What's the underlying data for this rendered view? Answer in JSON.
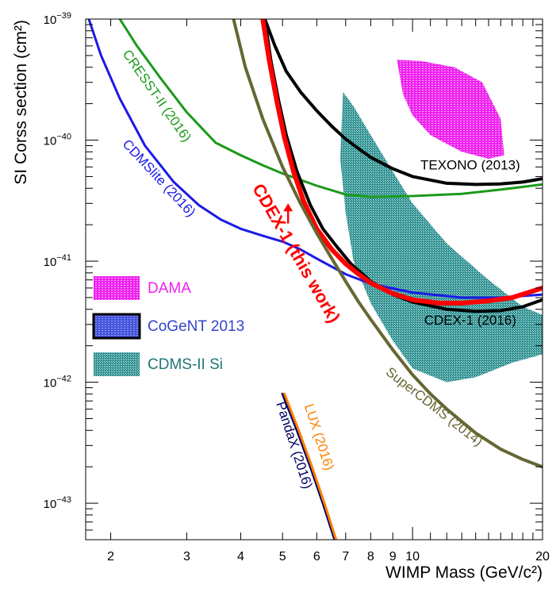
{
  "chart_data": {
    "type": "line",
    "title": "",
    "xlabel": "WIMP Mass (GeV/c²)",
    "ylabel": "SI Corss section (cm²)",
    "xscale": "log",
    "yscale": "log",
    "xlim": [
      1.75,
      20
    ],
    "ylim": [
      5e-44,
      1e-39
    ],
    "x_ticks": [
      {
        "value": 2,
        "label": "2"
      },
      {
        "value": 3,
        "label": "3"
      },
      {
        "value": 4,
        "label": "4"
      },
      {
        "value": 5,
        "label": "5"
      },
      {
        "value": 6,
        "label": "6"
      },
      {
        "value": 7,
        "label": "7"
      },
      {
        "value": 8,
        "label": "8"
      },
      {
        "value": 9,
        "label": "9"
      },
      {
        "value": 10,
        "label": "10"
      },
      {
        "value": 20,
        "label": "20"
      }
    ],
    "y_ticks": [
      {
        "value": 1e-39,
        "base": "10",
        "exp": "−39"
      },
      {
        "value": 1e-40,
        "base": "10",
        "exp": "−40"
      },
      {
        "value": 1e-41,
        "base": "10",
        "exp": "−41"
      },
      {
        "value": 1e-42,
        "base": "10",
        "exp": "−42"
      },
      {
        "value": 1e-43,
        "base": "10",
        "exp": "−43"
      }
    ],
    "series": [
      {
        "name": "CRESST-II (2016)",
        "color": "#1a9a1a",
        "width": 3,
        "x": [
          2.1,
          2.3,
          2.6,
          3.0,
          3.5,
          4.0,
          4.5,
          5.0,
          6.0,
          7.0,
          8.0,
          10.0,
          13.0,
          16.0,
          20.0
        ],
        "y": [
          1e-39,
          6e-40,
          3.3e-40,
          1.7e-40,
          9.5e-41,
          7.5e-41,
          6.2e-41,
          5.3e-41,
          4.2e-41,
          3.55e-41,
          3.4e-41,
          3.45e-41,
          3.6e-41,
          3.9e-41,
          4.3e-41
        ]
      },
      {
        "name": "CDMSlite (2016)",
        "color": "#1a1ae6",
        "width": 3,
        "x": [
          1.78,
          1.9,
          2.1,
          2.4,
          2.8,
          3.2,
          3.6,
          4.0,
          4.5,
          5.0,
          5.5,
          6.0,
          7.0,
          8.0,
          10.0,
          13.0,
          16.0,
          20.0
        ],
        "y": [
          1e-39,
          5e-40,
          2.2e-40,
          9e-41,
          4.5e-41,
          2.9e-41,
          2.2e-41,
          1.85e-41,
          1.62e-41,
          1.45e-41,
          1.25e-41,
          1.05e-41,
          7.8e-42,
          6.5e-42,
          5.5e-42,
          5e-42,
          5e-42,
          5.3e-42
        ]
      },
      {
        "name": "TEXONO (2013)",
        "color": "#000000",
        "width": 4,
        "x": [
          4.55,
          4.8,
          5.1,
          5.5,
          6.0,
          6.5,
          7.0,
          7.5,
          8.0,
          9.0,
          10.0,
          12.0,
          14.0,
          16.0,
          18.0,
          20.0
        ],
        "y": [
          1e-39,
          6e-40,
          3.7e-40,
          2.5e-40,
          1.75e-40,
          1.3e-40,
          1.02e-40,
          8.5e-41,
          7.2e-41,
          5.8e-41,
          5e-41,
          4.4e-41,
          4.3e-41,
          4.35e-41,
          4.5e-41,
          4.8e-41
        ]
      },
      {
        "name": "CDEX-1 (2016)",
        "color": "#000000",
        "width": 4,
        "x": [
          4.55,
          4.7,
          4.9,
          5.1,
          5.4,
          5.8,
          6.2,
          6.7,
          7.2,
          8.0,
          9.0,
          10.0,
          12.0,
          14.0,
          16.0,
          18.0,
          20.0
        ],
        "y": [
          1e-39,
          4.5e-40,
          2.1e-40,
          1.1e-40,
          5.5e-41,
          2.9e-41,
          1.85e-41,
          1.3e-41,
          9.5e-42,
          6.8e-42,
          5.3e-42,
          4.6e-42,
          4e-42,
          3.85e-42,
          3.9e-42,
          4.2e-42,
          4.8e-42
        ]
      },
      {
        "name": "CDEX-1 (this work)",
        "color": "#ff0000",
        "width": 6,
        "x": [
          4.5,
          4.65,
          4.85,
          5.05,
          5.3,
          5.6,
          6.0,
          6.5,
          7.0,
          7.5,
          8.0,
          9.0,
          10.0,
          11.5,
          13.0,
          15.0,
          17.0,
          20.0
        ],
        "y": [
          1e-39,
          4.7e-40,
          2.1e-40,
          1.05e-40,
          5.5e-41,
          3.1e-41,
          1.85e-41,
          1.25e-41,
          9.5e-42,
          7.8e-42,
          6.6e-42,
          5.4e-42,
          4.8e-42,
          4.5e-42,
          4.5e-42,
          4.7e-42,
          5e-42,
          6e-42
        ]
      },
      {
        "name": "SuperCDMS (2014)",
        "color": "#666633",
        "width": 4,
        "x": [
          3.85,
          4.1,
          4.5,
          5.0,
          5.5,
          6.0,
          6.5,
          7.0,
          7.5,
          8.0,
          9.0,
          10.0,
          11.0,
          12.0,
          14.0,
          16.0,
          18.0,
          20.0
        ],
        "y": [
          1e-39,
          4e-40,
          1.5e-40,
          6e-41,
          3e-41,
          1.7e-41,
          1.05e-41,
          6.8e-42,
          4.6e-42,
          3.3e-42,
          1.85e-42,
          1.15e-42,
          8e-43,
          6e-43,
          3.8e-43,
          2.8e-43,
          2.3e-43,
          2e-43
        ]
      },
      {
        "name": "PandaX (2016)",
        "color": "#000066",
        "width": 3,
        "x": [
          5.0,
          5.4,
          5.8,
          6.2,
          6.6
        ],
        "y": [
          8e-43,
          4e-43,
          2e-43,
          1e-43,
          5e-44
        ]
      },
      {
        "name": "LUX (2016)",
        "color": "#ff8000",
        "width": 3,
        "x": [
          5.05,
          5.45,
          5.85,
          6.25,
          6.65
        ],
        "y": [
          8e-43,
          4e-43,
          2e-43,
          1e-43,
          5e-44
        ]
      }
    ],
    "regions": [
      {
        "name": "DAMA",
        "color": "#ee22ee",
        "x": [
          9.2,
          10.5,
          12.5,
          14.5,
          16.0,
          16.3,
          15.0,
          13.0,
          11.0,
          10.0,
          9.5,
          9.2
        ],
        "y": [
          4.6e-40,
          4.5e-40,
          4e-40,
          3e-40,
          1.5e-40,
          7.5e-41,
          7e-41,
          8e-41,
          1.1e-40,
          1.6e-40,
          2.4e-40,
          4.6e-40
        ]
      },
      {
        "name": "CoGeNT 2013",
        "color": "#4455dd",
        "x": [
          7.5,
          8.0,
          8.5,
          8.8,
          8.5,
          8.0,
          7.6,
          7.5
        ],
        "y": [
          4.2e-41,
          3.8e-41,
          3.1e-41,
          2.5e-41,
          2.4e-41,
          2.9e-41,
          3.5e-41,
          4.2e-41
        ]
      },
      {
        "name": "CDMS-II Si",
        "color": "#339999",
        "x": [
          6.9,
          7.3,
          8.0,
          9.0,
          10.0,
          12.0,
          15.0,
          18.0,
          20.0,
          20.0,
          17.0,
          14.0,
          12.0,
          10.0,
          9.0,
          8.0,
          7.3,
          7.0,
          6.8,
          6.9
        ],
        "y": [
          2.5e-40,
          1.9e-40,
          1.1e-40,
          5.5e-41,
          3e-41,
          1.4e-41,
          7e-42,
          4.2e-42,
          3.6e-42,
          1.7e-42,
          1.45e-42,
          1.1e-42,
          1e-42,
          1.3e-42,
          2.2e-42,
          4.5e-42,
          1e-41,
          2.5e-41,
          7e-41,
          2.5e-40
        ]
      }
    ],
    "legend": {
      "position": "left",
      "entries": [
        {
          "label": "DAMA",
          "color": "#ee22ee"
        },
        {
          "label": "CoGeNT 2013",
          "color": "#3344cc"
        },
        {
          "label": "CDMS-II Si",
          "color": "#1f7777"
        }
      ]
    },
    "annotations": [
      {
        "text": "CRESST-II (2016)",
        "x": 2.55,
        "y": 2.3e-40,
        "color": "#1a9a1a",
        "angle": 55,
        "size": 17
      },
      {
        "text": "CDMSlite (2016)",
        "x": 2.58,
        "y": 4.8e-41,
        "color": "#1a1ae6",
        "angle": 47,
        "size": 17
      },
      {
        "text": "TEXONO (2013)",
        "x": 13.6,
        "y": 6.1e-41,
        "color": "#000000",
        "angle": 0,
        "size": 17
      },
      {
        "text": "CDEX-1 (2016)",
        "x": 13.6,
        "y": 3.2e-42,
        "color": "#000000",
        "angle": 0,
        "size": 17
      },
      {
        "text": "SuperCDMS (2014)",
        "x": 11.2,
        "y": 6.2e-43,
        "color": "#666633",
        "angle": 38,
        "size": 17
      },
      {
        "text": "PandaX (2016)",
        "x": 5.3,
        "y": 3e-43,
        "color": "#000066",
        "angle": 72,
        "size": 17
      },
      {
        "text": "LUX (2016)",
        "x": 6.05,
        "y": 3.5e-43,
        "color": "#ff8000",
        "angle": 72,
        "size": 17
      },
      {
        "text": "CDEX-1 (this work)",
        "x": 5.35,
        "y": 1.15e-41,
        "color": "#ff0000",
        "angle": 60,
        "size": 22,
        "bold": true
      }
    ]
  }
}
